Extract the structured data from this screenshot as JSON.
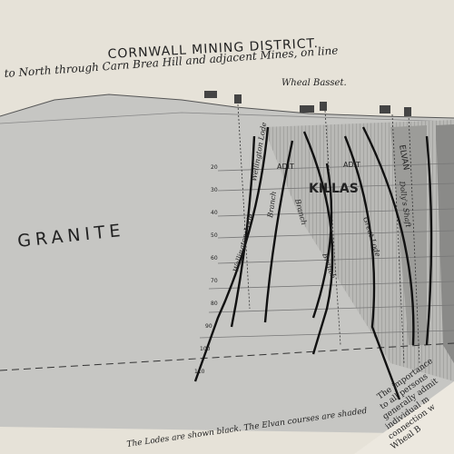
{
  "header": {
    "title": "CORNWALL MINING DISTRICT.",
    "subtitle": "to North through Carn Brea Hill and adjacent Mines, on line"
  },
  "labels": {
    "mine": "Wheal Basset.",
    "granite": "GRANITE",
    "killas": "KILLAS",
    "adits": [
      "ADIT",
      "ADIT"
    ],
    "elvan": "ELVAN",
    "lodes": [
      "Wellington Lode",
      "Wellington Lode",
      "Branch",
      "Branch",
      "Branch",
      "Great Lode",
      "Dolly's Shaft"
    ]
  },
  "levels": [
    "20",
    "30",
    "40",
    "50",
    "60",
    "70",
    "80",
    "90",
    "100",
    "110"
  ],
  "footnote": "The Lodes are shown black. The Elvan courses are shaded",
  "right_page": [
    "The importance",
    "to all persons",
    "generally admit",
    "individual m",
    "connection w",
    "Wheal B"
  ]
}
